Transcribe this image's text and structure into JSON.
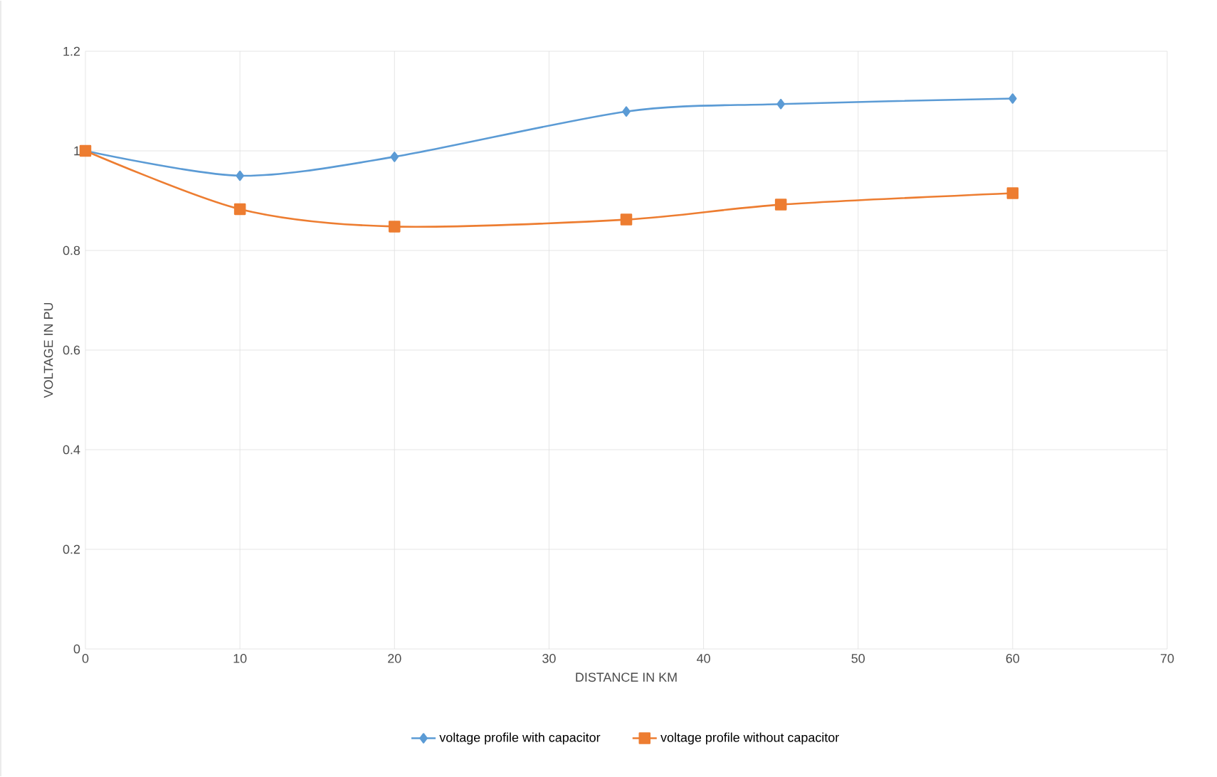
{
  "chart_data": {
    "type": "line",
    "xlabel": "DISTANCE IN KM",
    "ylabel": "VOLTAGE IN PU",
    "x": [
      0,
      10,
      20,
      35,
      45,
      60
    ],
    "series": [
      {
        "name": "voltage profile with capacitor",
        "color": "#5b9bd5",
        "marker": "diamond",
        "values": [
          1.0,
          0.95,
          0.988,
          1.079,
          1.094,
          1.105
        ]
      },
      {
        "name": "voltage profile without capacitor",
        "color": "#ed7d31",
        "marker": "square",
        "values": [
          1.0,
          0.883,
          0.848,
          0.862,
          0.892,
          0.915
        ]
      }
    ],
    "xlim": [
      0,
      70
    ],
    "xticks": [
      0,
      10,
      20,
      30,
      40,
      50,
      60,
      70
    ],
    "ylim": [
      0,
      1.2
    ],
    "yticks": [
      0,
      0.2,
      0.4,
      0.6,
      0.8,
      1,
      1.2
    ],
    "grid": true,
    "legend": "bottom",
    "line_style": "solid"
  }
}
